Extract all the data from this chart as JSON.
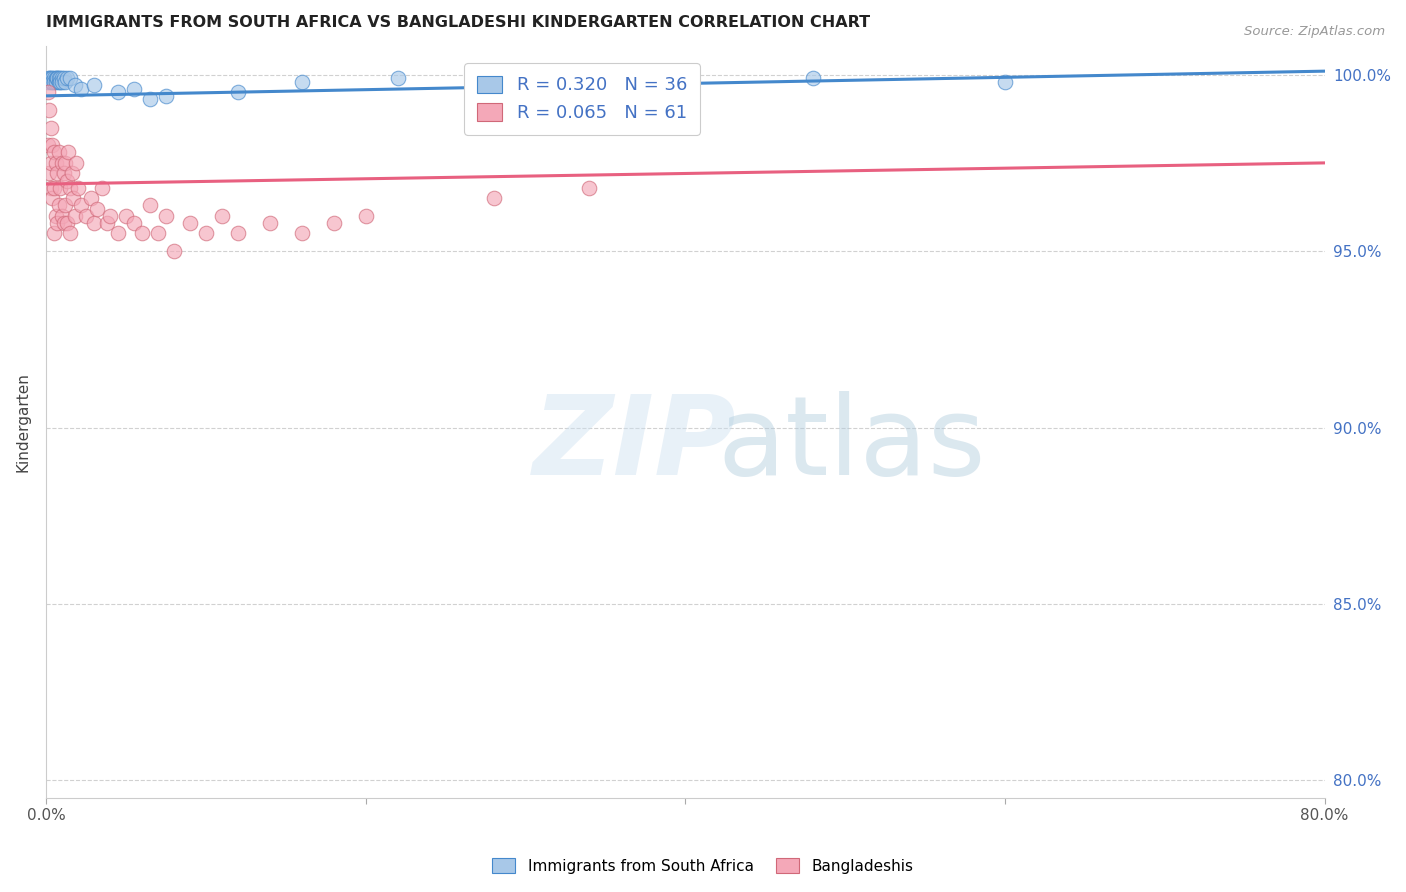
{
  "title": "IMMIGRANTS FROM SOUTH AFRICA VS BANGLADESHI KINDERGARTEN CORRELATION CHART",
  "source": "Source: ZipAtlas.com",
  "ylabel": "Kindergarten",
  "xlim": [
    0.0,
    0.8
  ],
  "ylim": [
    0.795,
    1.008
  ],
  "xticks": [
    0.0,
    0.2,
    0.4,
    0.6,
    0.8
  ],
  "xtick_labels": [
    "0.0%",
    "",
    "",
    "",
    "80.0%"
  ],
  "yticks": [
    0.8,
    0.85,
    0.9,
    0.95,
    1.0
  ],
  "ytick_labels": [
    "80.0%",
    "85.0%",
    "90.0%",
    "95.0%",
    "100.0%"
  ],
  "blue_color": "#a8c8e8",
  "pink_color": "#f4a8b8",
  "blue_line_color": "#4488cc",
  "pink_line_color": "#e86080",
  "R_blue": 0.32,
  "N_blue": 36,
  "R_pink": 0.065,
  "N_pink": 61,
  "legend_label_blue": "Immigrants from South Africa",
  "legend_label_pink": "Bangladeshis",
  "blue_scatter_x": [
    0.001,
    0.002,
    0.002,
    0.003,
    0.003,
    0.004,
    0.004,
    0.005,
    0.005,
    0.006,
    0.006,
    0.007,
    0.007,
    0.008,
    0.008,
    0.009,
    0.009,
    0.01,
    0.01,
    0.011,
    0.012,
    0.013,
    0.015,
    0.018,
    0.022,
    0.03,
    0.045,
    0.055,
    0.065,
    0.075,
    0.12,
    0.16,
    0.22,
    0.34,
    0.48,
    0.6
  ],
  "blue_scatter_y": [
    0.998,
    0.999,
    0.999,
    0.999,
    0.998,
    0.999,
    0.998,
    0.999,
    0.998,
    0.999,
    0.998,
    0.999,
    0.999,
    0.998,
    0.999,
    0.999,
    0.998,
    0.999,
    0.998,
    0.999,
    0.998,
    0.999,
    0.999,
    0.997,
    0.996,
    0.997,
    0.995,
    0.996,
    0.993,
    0.994,
    0.995,
    0.998,
    0.999,
    0.998,
    0.999,
    0.998
  ],
  "pink_scatter_x": [
    0.001,
    0.001,
    0.002,
    0.002,
    0.003,
    0.003,
    0.003,
    0.004,
    0.004,
    0.005,
    0.005,
    0.005,
    0.006,
    0.006,
    0.007,
    0.007,
    0.008,
    0.008,
    0.009,
    0.01,
    0.01,
    0.011,
    0.011,
    0.012,
    0.012,
    0.013,
    0.013,
    0.014,
    0.015,
    0.015,
    0.016,
    0.017,
    0.018,
    0.019,
    0.02,
    0.022,
    0.025,
    0.028,
    0.03,
    0.032,
    0.035,
    0.038,
    0.04,
    0.045,
    0.05,
    0.055,
    0.06,
    0.065,
    0.07,
    0.075,
    0.08,
    0.09,
    0.1,
    0.11,
    0.12,
    0.14,
    0.16,
    0.18,
    0.2,
    0.28,
    0.34
  ],
  "pink_scatter_y": [
    0.98,
    0.995,
    0.99,
    0.972,
    0.985,
    0.975,
    0.968,
    0.98,
    0.965,
    0.978,
    0.968,
    0.955,
    0.975,
    0.96,
    0.972,
    0.958,
    0.978,
    0.963,
    0.968,
    0.975,
    0.96,
    0.972,
    0.958,
    0.975,
    0.963,
    0.97,
    0.958,
    0.978,
    0.968,
    0.955,
    0.972,
    0.965,
    0.96,
    0.975,
    0.968,
    0.963,
    0.96,
    0.965,
    0.958,
    0.962,
    0.968,
    0.958,
    0.96,
    0.955,
    0.96,
    0.958,
    0.955,
    0.963,
    0.955,
    0.96,
    0.95,
    0.958,
    0.955,
    0.96,
    0.955,
    0.958,
    0.955,
    0.958,
    0.96,
    0.965,
    0.968
  ],
  "blue_line_x0": 0.0,
  "blue_line_x1": 0.8,
  "blue_line_y0": 0.994,
  "blue_line_y1": 1.001,
  "pink_line_x0": 0.0,
  "pink_line_x1": 0.8,
  "pink_line_y0": 0.969,
  "pink_line_y1": 0.975
}
